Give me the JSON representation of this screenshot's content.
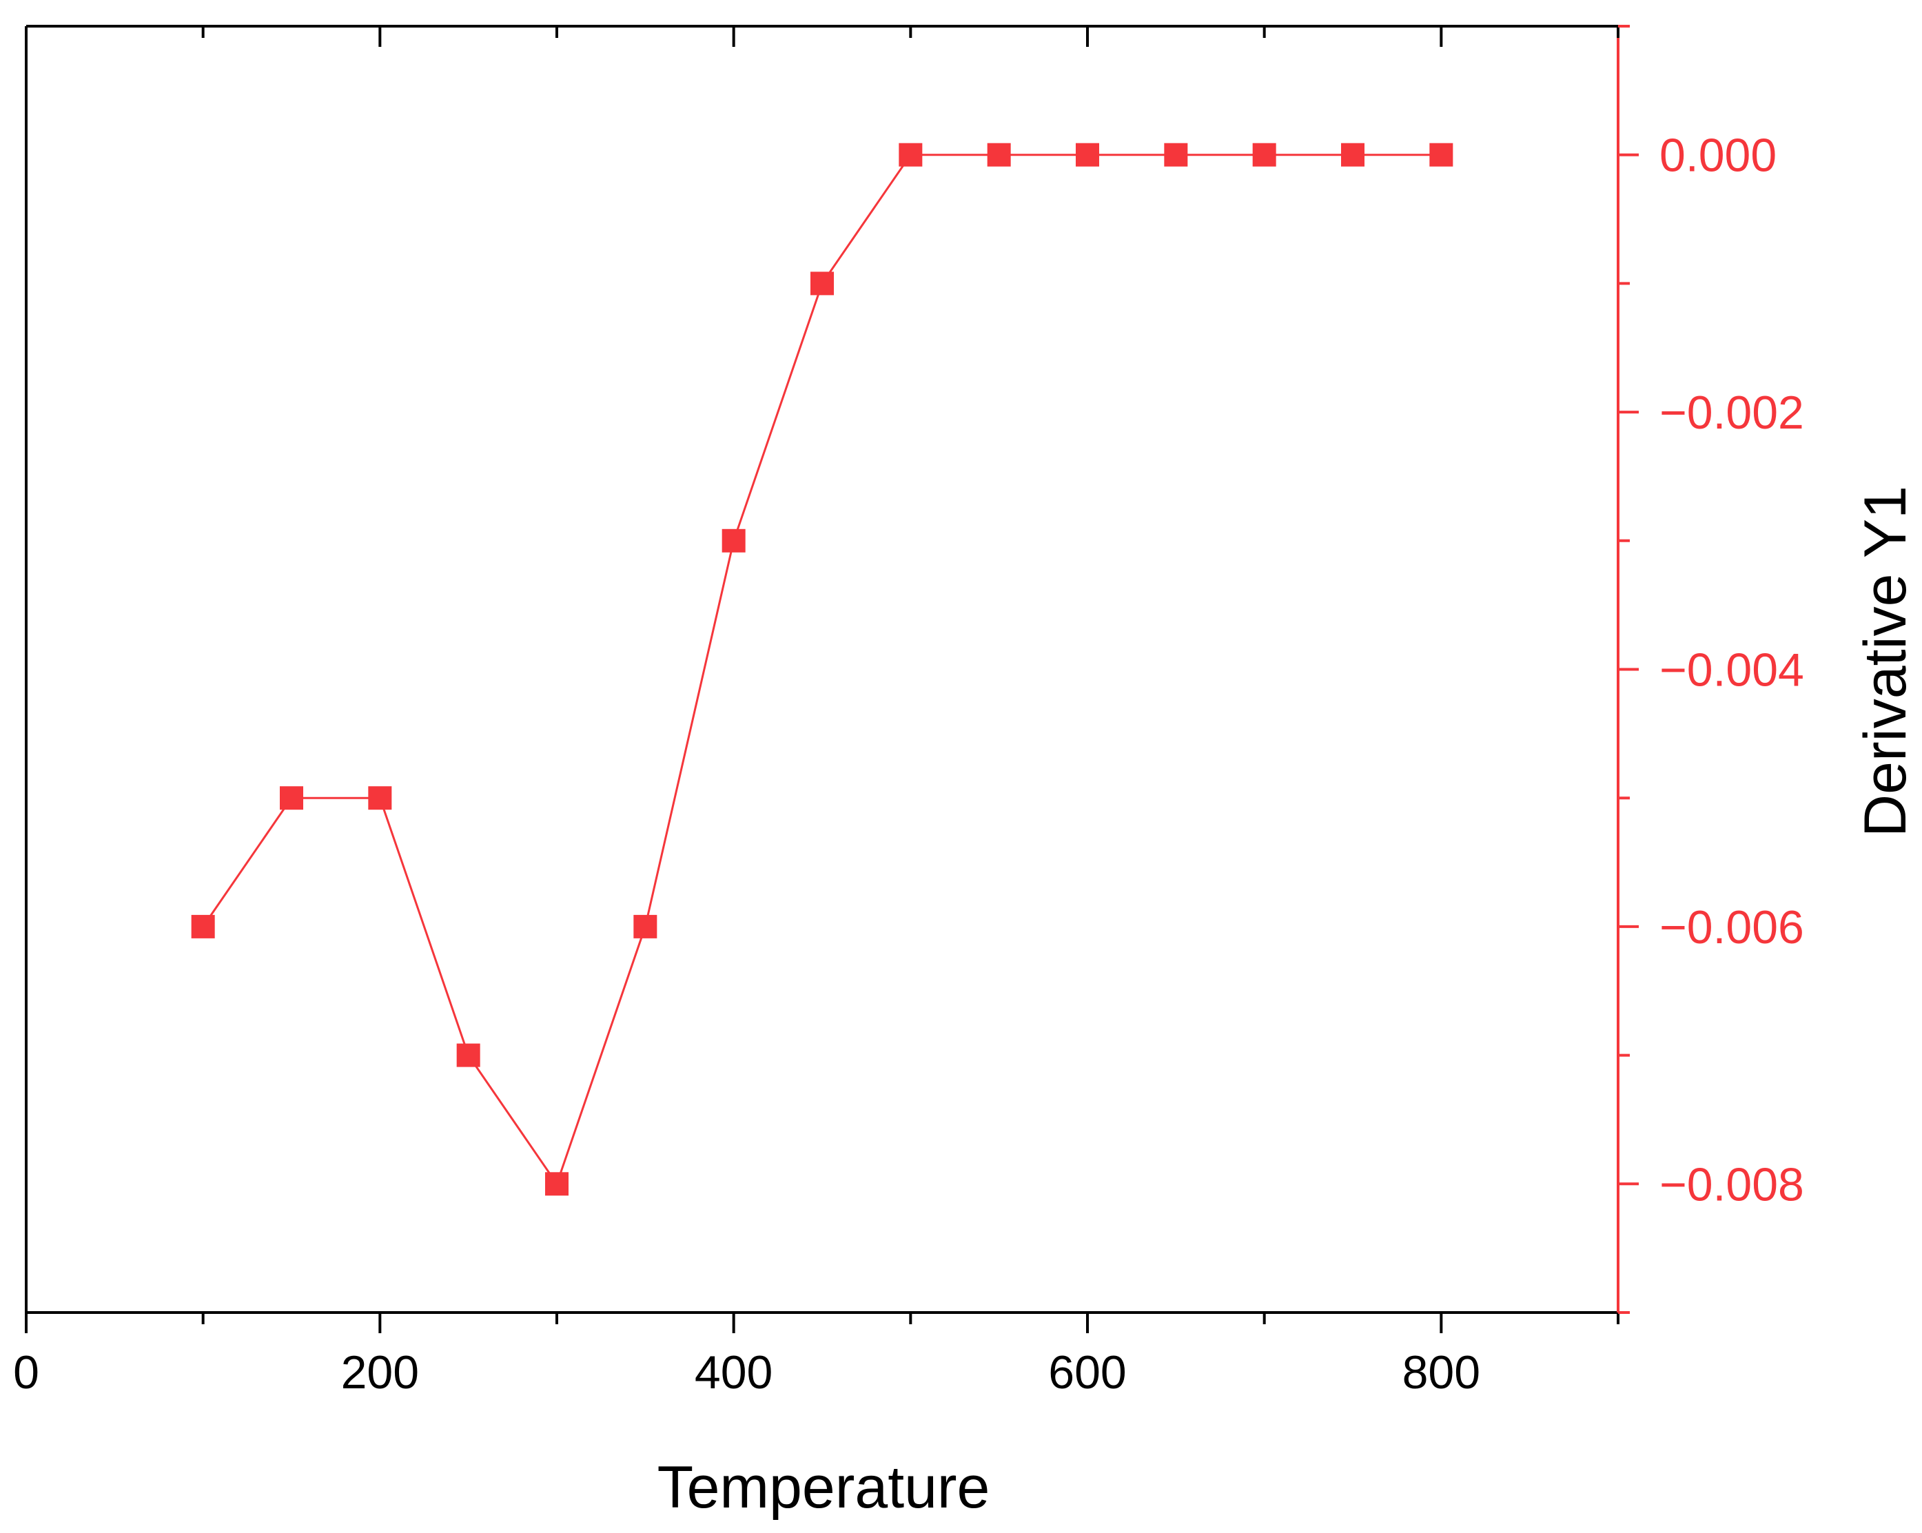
{
  "chart_data": {
    "type": "line",
    "xlabel": "Temperature",
    "ylabel_right": "Derivative Y1",
    "xlim": [
      0,
      900
    ],
    "ylim": [
      -0.009,
      0.001
    ],
    "x_ticks": [
      0,
      200,
      400,
      600,
      800
    ],
    "x_tick_labels": [
      "0",
      "200",
      "400",
      "600",
      "800"
    ],
    "x_minor_ticks": [
      100,
      300,
      500,
      700,
      900
    ],
    "y_ticks": [
      0.0,
      -0.002,
      -0.004,
      -0.006,
      -0.008
    ],
    "y_tick_labels": [
      "0.000",
      "−0.002",
      "−0.004",
      "−0.006",
      "−0.008"
    ],
    "y_minor_ticks": [
      0.001,
      -0.001,
      -0.003,
      -0.005,
      -0.007,
      -0.009
    ],
    "grid": false,
    "marker": "square",
    "colors": {
      "series": "#f5363b",
      "right_axis": "#f5363b",
      "left_axis": "#000000"
    },
    "series": [
      {
        "x": [
          100,
          150,
          200,
          250,
          300,
          350,
          400,
          450,
          500,
          550,
          600,
          650,
          700,
          750,
          800
        ],
        "values": [
          -0.006,
          -0.005,
          -0.005,
          -0.007,
          -0.008,
          -0.006,
          -0.003,
          -0.001,
          0.0,
          0.0,
          0.0,
          0.0,
          0.0,
          0.0,
          0.0
        ]
      }
    ]
  }
}
